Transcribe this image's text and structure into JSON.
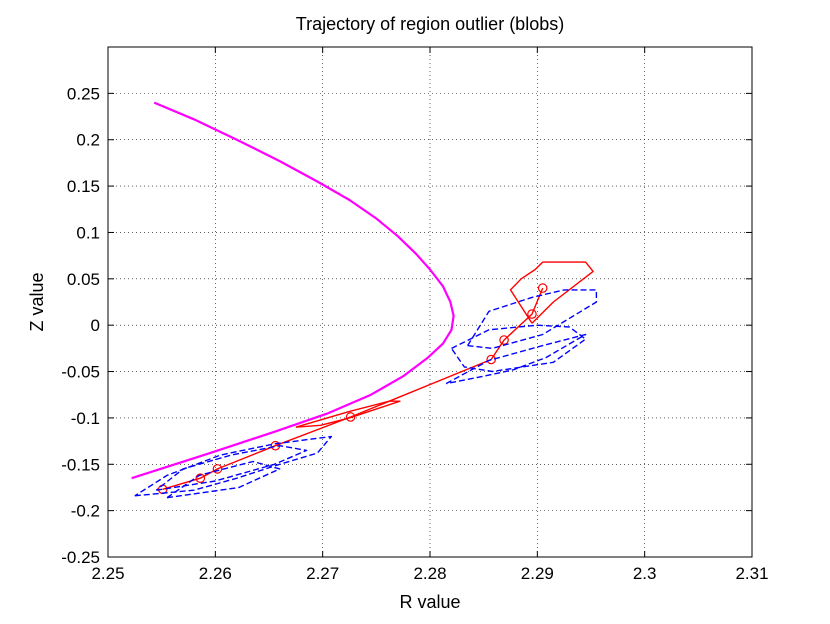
{
  "chart_data": {
    "type": "line",
    "title": "Trajectory of region outlier (blobs)",
    "xlabel": "R value",
    "ylabel": "Z value",
    "xlim": [
      2.25,
      2.31
    ],
    "ylim": [
      -0.25,
      0.3
    ],
    "xticks": [
      "2.25",
      "2.26",
      "2.27",
      "2.28",
      "2.29",
      "2.3",
      "2.31"
    ],
    "yticks": [
      "-0.25",
      "-0.2",
      "-0.15",
      "-0.1",
      "-0.05",
      "0",
      "0.05",
      "0.1",
      "0.15",
      "0.2",
      "0.25"
    ],
    "grid": true,
    "series": [
      {
        "style": "solid",
        "color": "#ff00ff",
        "x": [
          2.2543,
          2.258,
          2.262,
          2.266,
          2.2695,
          2.2725,
          2.275,
          2.277,
          2.2787,
          2.28,
          2.2812,
          2.2819,
          2.2822,
          2.282,
          2.2812,
          2.2798,
          2.2775,
          2.2745,
          2.2705,
          2.2655,
          2.2595,
          2.2522
        ],
        "y": [
          0.24,
          0.222,
          0.2,
          0.177,
          0.155,
          0.135,
          0.115,
          0.096,
          0.077,
          0.06,
          0.042,
          0.025,
          0.01,
          -0.005,
          -0.02,
          -0.035,
          -0.055,
          -0.075,
          -0.095,
          -0.115,
          -0.138,
          -0.165
        ]
      },
      {
        "style": "solid",
        "color": "#ff0000",
        "marker": "circle",
        "x": [
          2.2551,
          2.2586,
          2.2602,
          2.2656,
          2.2726,
          2.2857,
          2.2869,
          2.2895,
          2.2905
        ],
        "y": [
          -0.177,
          -0.165,
          -0.155,
          -0.13,
          -0.099,
          -0.037,
          -0.016,
          0.012,
          0.04
        ]
      },
      {
        "style": "solid",
        "color": "#ff0000",
        "x": [
          2.2675,
          2.2725,
          2.2762,
          2.2772,
          2.2725,
          2.2698,
          2.2675
        ],
        "y": [
          -0.11,
          -0.093,
          -0.082,
          -0.082,
          -0.1,
          -0.108,
          -0.11
        ]
      },
      {
        "style": "solid",
        "color": "#ff0000",
        "x": [
          2.2895,
          2.2915,
          2.2952,
          2.2945,
          2.2905,
          2.2898,
          2.2885,
          2.2875,
          2.2895
        ],
        "y": [
          0.002,
          0.025,
          0.058,
          0.068,
          0.068,
          0.06,
          0.05,
          0.038,
          0.002
        ]
      },
      {
        "style": "dashed",
        "color": "#0000ff",
        "x": [
          2.2525,
          2.258,
          2.262,
          2.266,
          2.2695,
          2.2708,
          2.2655,
          2.2605,
          2.2555,
          2.2525
        ],
        "y": [
          -0.184,
          -0.178,
          -0.165,
          -0.15,
          -0.138,
          -0.12,
          -0.128,
          -0.14,
          -0.162,
          -0.184
        ]
      },
      {
        "style": "dashed",
        "color": "#0000ff",
        "x": [
          2.2545,
          2.26,
          2.2655,
          2.2685,
          2.266,
          2.2615,
          2.257,
          2.2545
        ],
        "y": [
          -0.178,
          -0.168,
          -0.15,
          -0.135,
          -0.13,
          -0.14,
          -0.155,
          -0.178
        ]
      },
      {
        "style": "dashed",
        "color": "#0000ff",
        "x": [
          2.2555,
          2.2622,
          2.266,
          2.2635,
          2.2585,
          2.2555
        ],
        "y": [
          -0.186,
          -0.175,
          -0.155,
          -0.147,
          -0.162,
          -0.186
        ]
      },
      {
        "style": "dashed",
        "color": "#0000ff",
        "x": [
          2.2835,
          2.2855,
          2.2895,
          2.2925,
          2.2955,
          2.2955,
          2.2905,
          2.2858,
          2.2835
        ],
        "y": [
          -0.022,
          0.015,
          0.03,
          0.038,
          0.038,
          0.025,
          -0.01,
          -0.025,
          -0.022
        ]
      },
      {
        "style": "dashed",
        "color": "#0000ff",
        "x": [
          2.282,
          2.2855,
          2.29,
          2.293,
          2.2945,
          2.2915,
          2.2858,
          2.2832,
          2.282
        ],
        "y": [
          -0.025,
          -0.005,
          0.0,
          -0.002,
          -0.015,
          -0.04,
          -0.05,
          -0.045,
          -0.025
        ]
      },
      {
        "style": "dashed",
        "color": "#0000ff",
        "x": [
          2.2815,
          2.2855,
          2.2905,
          2.2945,
          2.2908,
          2.2878,
          2.285,
          2.2815
        ],
        "y": [
          -0.063,
          -0.038,
          -0.022,
          -0.01,
          -0.035,
          -0.048,
          -0.055,
          -0.063
        ]
      }
    ]
  }
}
